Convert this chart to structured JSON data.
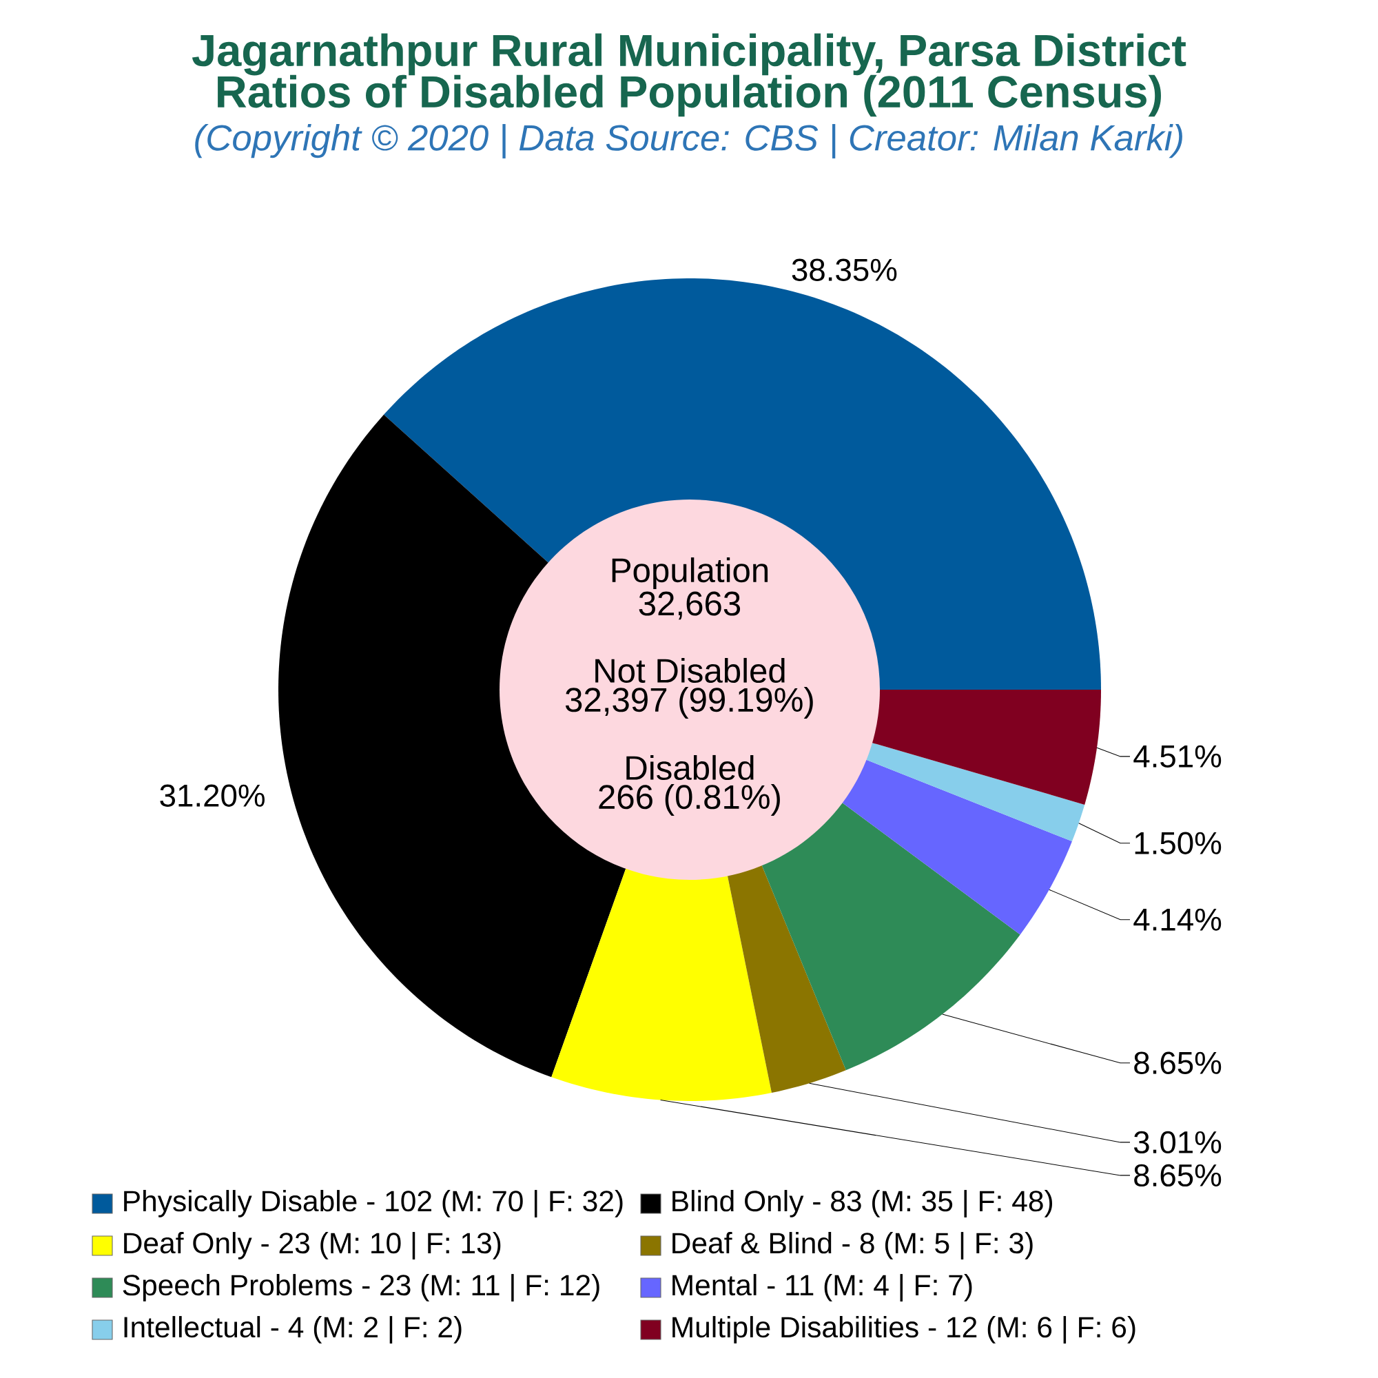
{
  "chart_data": {
    "type": "donut",
    "title": "Jagarnathpur Rural Municipality, Parsa District",
    "subtitle": "Ratios of Disabled Population (2011 Census)",
    "annotations": [
      "(Copyright © 2020 | Data Source: CBS | Creator: Milan Karki)",
      "Population",
      "32,663",
      "Not Disabled",
      "32,397 (99.19%)",
      "Disabled",
      "266 (0.81%)"
    ],
    "categories": [
      "Physically Disable - 102 (M: 70 | F: 32)",
      "Blind Only - 83 (M: 35 | F: 48)",
      "Deaf Only - 23 (M: 10 | F: 13)",
      "Deaf & Blind - 8 (M: 5 | F: 3)",
      "Speech Problems - 23 (M: 11 | F: 12)",
      "Mental - 11 (M: 4 | F: 7)",
      "Intellectual - 4 (M: 2 | F: 2)",
      "Multiple Disabilities - 12 (M: 6 | F: 6)"
    ],
    "values": [
      38.35,
      31.2,
      8.65,
      3.01,
      8.65,
      4.14,
      1.5,
      4.51
    ],
    "colors": [
      "#005a9c",
      "#000000",
      "#ffff00",
      "#8b7500",
      "#2e8b57",
      "#6666ff",
      "#87ceeb",
      "#800020"
    ],
    "value_labels": [
      "38.35%",
      "31.20%",
      "8.65%",
      "3.01%",
      "8.65%",
      "4.14%",
      "1.50%",
      "4.51%"
    ],
    "legend": "bottom"
  }
}
